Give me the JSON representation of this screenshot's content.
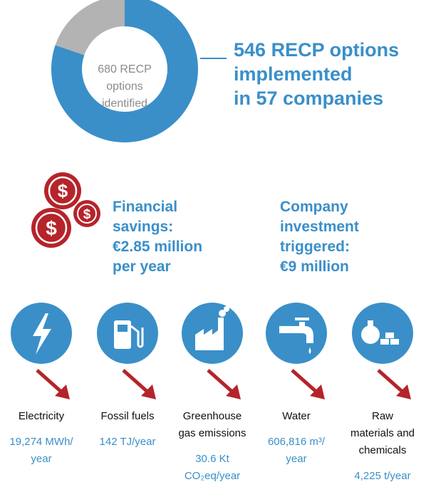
{
  "donut": {
    "identified": 680,
    "implemented": 546,
    "center_text": [
      "RECP",
      "options",
      "identified"
    ],
    "headline": [
      "RECP options",
      "implemented",
      "in 57 companies"
    ]
  },
  "financial": [
    "Financial",
    "savings:",
    "€2.85 million",
    "per year"
  ],
  "investment": [
    "Company",
    "investment",
    "triggered:",
    "€9 million"
  ],
  "items": [
    {
      "label": [
        "Electricity"
      ],
      "value": [
        "19,274 MWh/",
        "year"
      ]
    },
    {
      "label": [
        "Fossil fuels"
      ],
      "value": [
        "142 TJ/year"
      ]
    },
    {
      "label": [
        "Greenhouse",
        "gas emissions"
      ],
      "value": [
        "30.6 Kt",
        "CO₂eq/year"
      ]
    },
    {
      "label": [
        "Water"
      ],
      "value": [
        "606,816 m³/",
        "year"
      ]
    },
    {
      "label": [
        "Raw",
        "materials and",
        "chemicals"
      ],
      "value": [
        "4,225 t/year"
      ]
    }
  ]
}
